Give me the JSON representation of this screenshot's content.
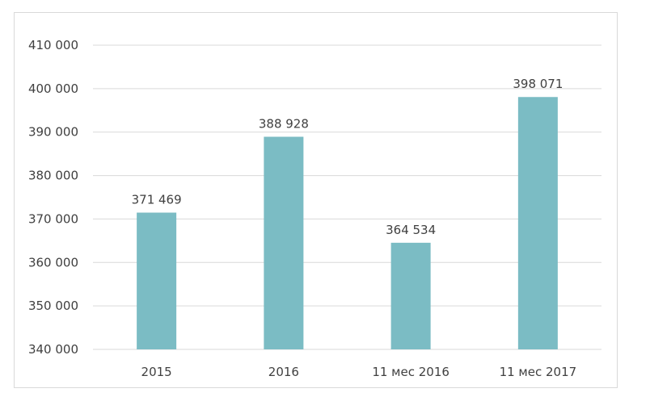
{
  "chart_data": {
    "type": "bar",
    "categories": [
      "2015",
      "2016",
      "11 мес 2016",
      "11 мес 2017"
    ],
    "values": [
      371469,
      388928,
      364534,
      398071
    ],
    "value_labels": [
      "371 469",
      "388 928",
      "364 534",
      "398 071"
    ],
    "title": "",
    "xlabel": "",
    "ylabel": "",
    "ylim": [
      340000,
      410000
    ],
    "yticks": [
      340000,
      350000,
      360000,
      370000,
      380000,
      390000,
      400000,
      410000
    ],
    "ytick_labels": [
      "340 000",
      "350 000",
      "360 000",
      "370 000",
      "380 000",
      "390 000",
      "400 000",
      "410 000"
    ],
    "grid": true,
    "legend": "none",
    "bar_color": "#7bbcc4",
    "grid_color": "#d9d9d9"
  }
}
